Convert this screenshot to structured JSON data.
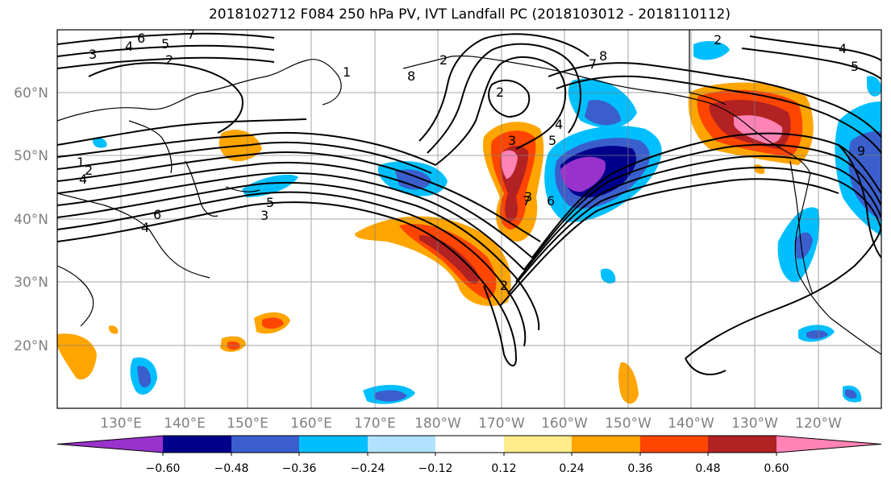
{
  "title": "2018102712 F084 250 hPa PV, IVT Landfall PC (2018103012 - 2018110112)",
  "latitude_labels": [
    "60°N",
    "50°N",
    "40°N",
    "30°N",
    "20°N"
  ],
  "longitude_labels": [
    "130°E",
    "140°E",
    "150°E",
    "160°E",
    "170°E",
    "180°W",
    "170°W",
    "160°W",
    "150°W",
    "140°W",
    "130°W",
    "120°W"
  ],
  "colorbar": {
    "colors": [
      "#9932cc",
      "#00008b",
      "#3a5fcd",
      "#00bfff",
      "#b0e2ff",
      "#ffffff",
      "#ffec8b",
      "#ffa500",
      "#ff4500",
      "#b22222",
      "#ff83b4"
    ],
    "tick_labels": [
      "−0.60",
      "−0.48",
      "−0.36",
      "−0.24",
      "−0.12",
      "0.12",
      "0.24",
      "0.36",
      "0.48",
      "0.60"
    ]
  },
  "contour_labels": [
    "3",
    "4",
    "6",
    "5",
    "7",
    "2",
    "8",
    "1",
    "2",
    "4",
    "5",
    "3",
    "6",
    "4",
    "3",
    "2",
    "8",
    "7",
    "2",
    "3",
    "4",
    "5",
    "7",
    "6",
    "5",
    "4",
    "2",
    "1",
    "9",
    "2"
  ]
}
